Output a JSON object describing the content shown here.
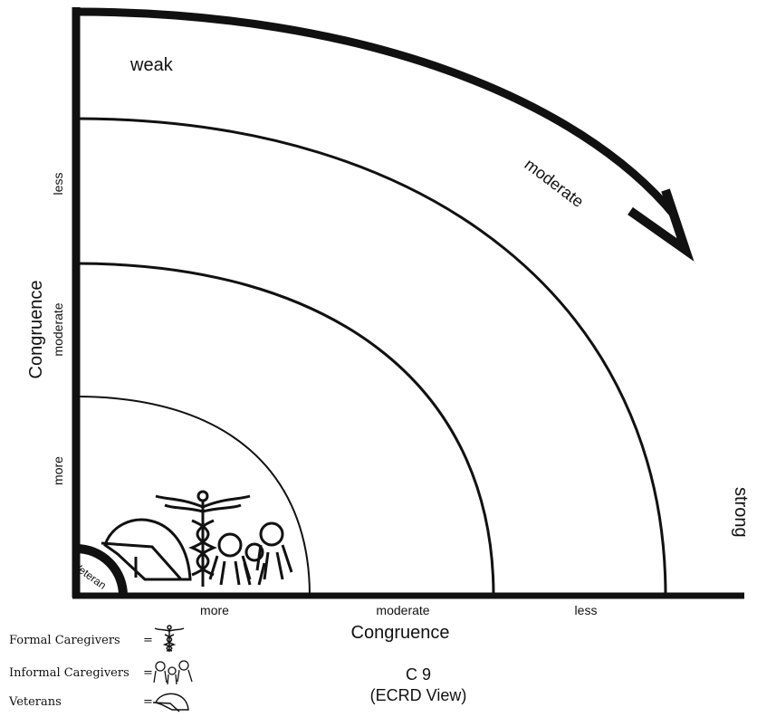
{
  "diagram": {
    "rings": {
      "outer": "weak",
      "arrow": "moderate",
      "right_edge": "strong"
    },
    "origin": "Veteran",
    "y_axis": {
      "title": "Congruence",
      "ticks": [
        "less",
        "moderate",
        "more"
      ]
    },
    "x_axis": {
      "title": "Congruence",
      "ticks": [
        "more",
        "moderate",
        "less"
      ]
    }
  },
  "legend": [
    {
      "label": "Formal Caregivers",
      "icon": "caduceus-icon"
    },
    {
      "label": "Informal Caregivers",
      "icon": "people-icon"
    },
    {
      "label": "Veterans",
      "icon": "helmet-icon"
    }
  ],
  "legend_eq": "=",
  "caption": {
    "line1": "C 9",
    "line2": "(ECRD View)"
  }
}
